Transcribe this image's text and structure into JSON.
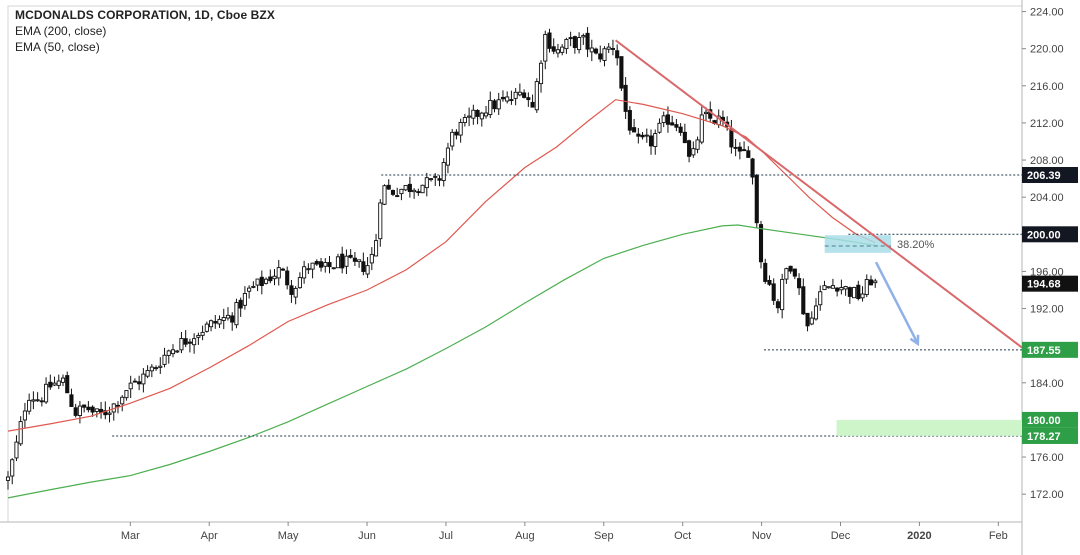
{
  "legend": {
    "title": "MCDONALDS CORPORATION, 1D, Cboe BZX",
    "ema200": "EMA (200, close)",
    "ema50": "EMA (50, close)"
  },
  "colors": {
    "up": "#26a69a",
    "candle": "#111111",
    "ema50": "#e0584f",
    "ema200": "#4caf50",
    "trend": "#d9686b",
    "arrow": "#8fb1e8",
    "fib_zone": "#a8dde8",
    "support_zone": "#c9f4c4",
    "tag_dark": "#131722",
    "tag_green": "#2e9e47",
    "dotted": "#1c3a4e"
  },
  "chart_data": {
    "type": "candlestick",
    "ylim": [
      169.0,
      224.6
    ],
    "y_ticks": [
      172,
      176,
      180,
      184,
      188,
      192,
      196,
      200,
      204,
      208,
      212,
      216,
      220,
      224
    ],
    "y_tick_labels": [
      "172.00",
      "176.00",
      "180.00",
      "184.00",
      "188.00",
      "192.00",
      "196.00",
      "200.00",
      "204.00",
      "208.00",
      "212.00",
      "216.00",
      "220.00",
      "224.00"
    ],
    "x_labels": [
      {
        "label": "Mar",
        "month": 1
      },
      {
        "label": "Apr",
        "month": 2
      },
      {
        "label": "May",
        "month": 3
      },
      {
        "label": "Jun",
        "month": 4
      },
      {
        "label": "Jul",
        "month": 5
      },
      {
        "label": "Aug",
        "month": 6
      },
      {
        "label": "Sep",
        "month": 7
      },
      {
        "label": "Oct",
        "month": 8
      },
      {
        "label": "Nov",
        "month": 9
      },
      {
        "label": "Dec",
        "month": 10
      },
      {
        "label": "2020",
        "month": 11
      },
      {
        "label": "Feb",
        "month": 12
      }
    ],
    "x_range_months": [
      -0.55,
      12.3
    ],
    "price_tags": [
      {
        "label": "206.39",
        "value": 206.39,
        "style": "dark"
      },
      {
        "label": "200.00",
        "value": 200.0,
        "style": "dark"
      },
      {
        "label": "194.68",
        "value": 194.68,
        "style": "dark"
      },
      {
        "label": "187.55",
        "value": 187.55,
        "style": "green"
      },
      {
        "label": "180.00",
        "value": 180.0,
        "style": "green"
      },
      {
        "label": "178.27",
        "value": 178.27,
        "style": "green"
      }
    ],
    "horizontal_levels": [
      {
        "value": 206.39,
        "from_month": 4.18
      },
      {
        "value": 200.0,
        "from_month": 10.1
      },
      {
        "value": 187.55,
        "from_month": 9.03
      },
      {
        "value": 178.27,
        "from_month": 0.77
      }
    ],
    "fib_zone": {
      "label": "38.20%",
      "from_month": 9.8,
      "to_month": 10.64,
      "y_low": 198.0,
      "y_high": 199.9
    },
    "support_zone": {
      "from_month": 9.95,
      "to_month": 12.3,
      "y_low": 178.27,
      "y_high": 180.0
    },
    "trendline": {
      "from": [
        7.15,
        220.9
      ],
      "to": [
        12.3,
        187.8
      ]
    },
    "projection_arrow": {
      "from": [
        10.45,
        197.0
      ],
      "to": [
        10.98,
        188.2
      ]
    },
    "ema50_points": [
      [
        -0.55,
        178.8
      ],
      [
        0,
        179.6
      ],
      [
        0.5,
        180.4
      ],
      [
        1,
        181.8
      ],
      [
        1.5,
        183.4
      ],
      [
        2,
        185.6
      ],
      [
        2.5,
        188.0
      ],
      [
        3,
        190.6
      ],
      [
        3.5,
        192.4
      ],
      [
        4,
        194.0
      ],
      [
        4.5,
        196.2
      ],
      [
        5,
        199.2
      ],
      [
        5.5,
        203.5
      ],
      [
        6,
        207.2
      ],
      [
        6.4,
        209.4
      ],
      [
        6.8,
        212.2
      ],
      [
        7.15,
        214.5
      ],
      [
        7.5,
        214.0
      ],
      [
        8,
        213.0
      ],
      [
        8.5,
        211.7
      ],
      [
        8.8,
        210.5
      ],
      [
        9,
        209.0
      ],
      [
        9.3,
        206.5
      ],
      [
        9.6,
        204.0
      ],
      [
        9.9,
        201.8
      ],
      [
        10.2,
        200.0
      ],
      [
        10.44,
        199.1
      ]
    ],
    "ema200_points": [
      [
        -0.55,
        171.6
      ],
      [
        0,
        172.5
      ],
      [
        0.5,
        173.3
      ],
      [
        1,
        174.0
      ],
      [
        1.5,
        175.2
      ],
      [
        2,
        176.6
      ],
      [
        2.5,
        178.1
      ],
      [
        3,
        179.8
      ],
      [
        3.5,
        181.7
      ],
      [
        4,
        183.6
      ],
      [
        4.5,
        185.5
      ],
      [
        5,
        187.7
      ],
      [
        5.5,
        190.0
      ],
      [
        6,
        192.6
      ],
      [
        6.5,
        195.1
      ],
      [
        7,
        197.4
      ],
      [
        7.5,
        198.8
      ],
      [
        8,
        200.0
      ],
      [
        8.5,
        200.9
      ],
      [
        8.7,
        201.0
      ],
      [
        9,
        200.6
      ],
      [
        9.5,
        200.0
      ],
      [
        10,
        199.4
      ],
      [
        10.44,
        198.8
      ]
    ],
    "price_path": [
      [
        -0.55,
        173.6
      ],
      [
        -0.45,
        177.0
      ],
      [
        -0.3,
        182.8
      ],
      [
        -0.15,
        182.2
      ],
      [
        0.0,
        183.8
      ],
      [
        0.15,
        184.2
      ],
      [
        0.3,
        180.8
      ],
      [
        0.45,
        181.3
      ],
      [
        0.6,
        180.4
      ],
      [
        0.78,
        181.5
      ],
      [
        0.95,
        183.3
      ],
      [
        1.1,
        184.2
      ],
      [
        1.3,
        185.6
      ],
      [
        1.5,
        187.6
      ],
      [
        1.7,
        188.6
      ],
      [
        1.9,
        189.7
      ],
      [
        2.1,
        190.6
      ],
      [
        2.3,
        191.3
      ],
      [
        2.5,
        193.9
      ],
      [
        2.7,
        195.0
      ],
      [
        2.9,
        196.2
      ],
      [
        3.05,
        194.1
      ],
      [
        3.25,
        196.6
      ],
      [
        3.45,
        196.1
      ],
      [
        3.65,
        197.1
      ],
      [
        3.85,
        196.6
      ],
      [
        4.0,
        196.6
      ],
      [
        4.1,
        198.3
      ],
      [
        4.18,
        205.2
      ],
      [
        4.3,
        204.6
      ],
      [
        4.5,
        205.0
      ],
      [
        4.7,
        205.4
      ],
      [
        4.9,
        205.6
      ],
      [
        5.0,
        208.6
      ],
      [
        5.1,
        211.1
      ],
      [
        5.25,
        211.9
      ],
      [
        5.45,
        213.4
      ],
      [
        5.65,
        214.1
      ],
      [
        5.85,
        214.6
      ],
      [
        6.0,
        215.6
      ],
      [
        6.1,
        213.6
      ],
      [
        6.25,
        221.5
      ],
      [
        6.4,
        219.6
      ],
      [
        6.55,
        220.6
      ],
      [
        6.75,
        220.8
      ],
      [
        6.9,
        219.1
      ],
      [
        7.0,
        219.6
      ],
      [
        7.15,
        220.6
      ],
      [
        7.25,
        214.0
      ],
      [
        7.4,
        209.8
      ],
      [
        7.6,
        210.0
      ],
      [
        7.8,
        212.5
      ],
      [
        8.0,
        211.5
      ],
      [
        8.1,
        207.3
      ],
      [
        8.25,
        212.6
      ],
      [
        8.5,
        212.2
      ],
      [
        8.7,
        208.2
      ],
      [
        8.85,
        209.2
      ],
      [
        8.9,
        204.8
      ],
      [
        9.0,
        196.6
      ],
      [
        9.1,
        194.6
      ],
      [
        9.2,
        192.1
      ],
      [
        9.3,
        196.1
      ],
      [
        9.4,
        197.1
      ],
      [
        9.5,
        192.9
      ],
      [
        9.6,
        189.6
      ],
      [
        9.7,
        193.4
      ],
      [
        9.8,
        194.1
      ],
      [
        9.95,
        194.7
      ],
      [
        10.1,
        193.9
      ],
      [
        10.25,
        193.3
      ],
      [
        10.4,
        195.3
      ],
      [
        10.44,
        194.7
      ]
    ]
  }
}
